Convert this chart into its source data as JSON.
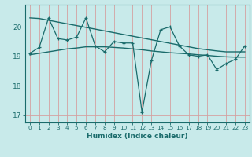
{
  "xlabel": "Humidex (Indice chaleur)",
  "bg_color": "#c8eaea",
  "grid_color": "#d4a0a0",
  "line_color": "#1a6b6b",
  "x": [
    0,
    1,
    2,
    3,
    4,
    5,
    6,
    7,
    8,
    9,
    10,
    11,
    12,
    13,
    14,
    15,
    16,
    17,
    18,
    19,
    20,
    21,
    22,
    23
  ],
  "y_main": [
    19.1,
    19.3,
    20.3,
    19.6,
    19.55,
    19.65,
    20.3,
    19.35,
    19.15,
    19.5,
    19.45,
    19.45,
    17.1,
    18.85,
    19.9,
    20.0,
    19.35,
    19.05,
    19.0,
    19.05,
    18.55,
    18.75,
    18.9,
    19.35
  ],
  "y_trend_upper": [
    20.3,
    20.28,
    20.22,
    20.16,
    20.1,
    20.04,
    19.98,
    19.92,
    19.86,
    19.8,
    19.74,
    19.68,
    19.62,
    19.56,
    19.5,
    19.44,
    19.38,
    19.32,
    19.26,
    19.22,
    19.18,
    19.15,
    19.15,
    19.15
  ],
  "y_trend_lower": [
    19.05,
    19.1,
    19.15,
    19.2,
    19.25,
    19.28,
    19.32,
    19.32,
    19.32,
    19.3,
    19.28,
    19.25,
    19.22,
    19.18,
    19.15,
    19.12,
    19.1,
    19.08,
    19.05,
    19.03,
    19.0,
    18.98,
    18.97,
    18.97
  ],
  "ylim": [
    16.75,
    20.75
  ],
  "yticks": [
    17,
    18,
    19,
    20
  ],
  "xlim": [
    -0.5,
    23.5
  ],
  "xtick_fontsize": 5.2,
  "ytick_fontsize": 6.5,
  "xlabel_fontsize": 6.5
}
